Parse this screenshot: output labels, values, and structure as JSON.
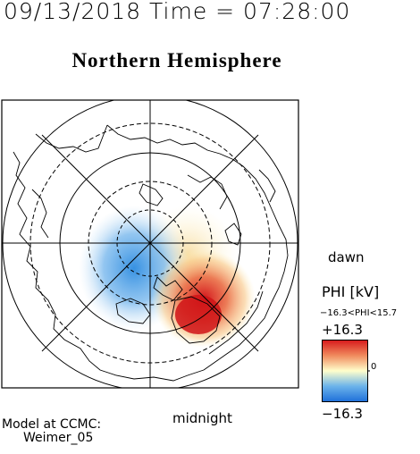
{
  "header": {
    "timestamp": "09/13/2018 Time = 07:28:00",
    "title": "Northern Hemisphere"
  },
  "map": {
    "projection": "polar stereographic, north pole centered",
    "latitude_circles_shown": 4,
    "meridians_shown": 8,
    "features": [
      "coastlines",
      "potential-contours"
    ],
    "orientation_labels": {
      "dawn": "dawn",
      "midnight": "midnight"
    }
  },
  "colorbar": {
    "title": "PHI [kV]",
    "range_text": "−16.3<PHI<15.7",
    "max_label": "+16.3",
    "min_label": "−16.3",
    "zero_label": "0",
    "colors": {
      "positive": "#d7191c",
      "zero": "#ffffcc",
      "negative": "#2c7bb6"
    }
  },
  "footer": {
    "model_line1": "Model at CCMC:",
    "model_line2": "Weimer_05"
  },
  "colors": {
    "background": "#ffffff",
    "lines": "#000000"
  }
}
